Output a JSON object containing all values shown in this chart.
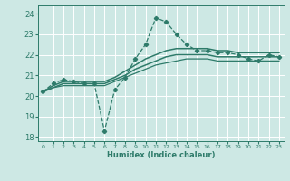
{
  "background_color": "#cde8e4",
  "grid_color": "#ffffff",
  "line_color": "#2e7b6a",
  "xlabel": "Humidex (Indice chaleur)",
  "xlim": [
    -0.5,
    23.5
  ],
  "ylim": [
    17.8,
    24.4
  ],
  "yticks": [
    18,
    19,
    20,
    21,
    22,
    23,
    24
  ],
  "xticks": [
    0,
    1,
    2,
    3,
    4,
    5,
    6,
    7,
    8,
    9,
    10,
    11,
    12,
    13,
    14,
    15,
    16,
    17,
    18,
    19,
    20,
    21,
    22,
    23
  ],
  "lines": [
    {
      "x": [
        0,
        1,
        2,
        3,
        4,
        5,
        6,
        7,
        8,
        9,
        10,
        11,
        12,
        13,
        14,
        15,
        16,
        17,
        18,
        19,
        20,
        21,
        22,
        23
      ],
      "y": [
        20.2,
        20.6,
        20.8,
        20.7,
        20.6,
        20.6,
        18.3,
        20.3,
        20.9,
        21.8,
        22.5,
        23.8,
        23.6,
        23.0,
        22.5,
        22.2,
        22.2,
        22.1,
        22.1,
        22.0,
        21.8,
        21.7,
        22.0,
        21.9
      ],
      "marker": "D",
      "markersize": 2.2,
      "linewidth": 0.9,
      "linestyle": "--"
    },
    {
      "x": [
        0,
        1,
        2,
        3,
        4,
        5,
        6,
        7,
        8,
        9,
        10,
        11,
        12,
        13,
        14,
        15,
        16,
        17,
        18,
        19,
        20,
        21,
        22,
        23
      ],
      "y": [
        20.2,
        20.5,
        20.7,
        20.7,
        20.7,
        20.7,
        20.7,
        20.9,
        21.2,
        21.5,
        21.8,
        22.0,
        22.2,
        22.3,
        22.3,
        22.3,
        22.3,
        22.2,
        22.2,
        22.1,
        22.1,
        22.1,
        22.1,
        22.1
      ],
      "marker": null,
      "markersize": 0,
      "linewidth": 1.1,
      "linestyle": "-"
    },
    {
      "x": [
        0,
        1,
        2,
        3,
        4,
        5,
        6,
        7,
        8,
        9,
        10,
        11,
        12,
        13,
        14,
        15,
        16,
        17,
        18,
        19,
        20,
        21,
        22,
        23
      ],
      "y": [
        20.2,
        20.4,
        20.6,
        20.6,
        20.6,
        20.6,
        20.6,
        20.8,
        21.0,
        21.3,
        21.5,
        21.7,
        21.9,
        22.0,
        22.0,
        22.0,
        22.0,
        21.9,
        21.9,
        21.9,
        21.9,
        21.9,
        21.9,
        21.9
      ],
      "marker": null,
      "markersize": 0,
      "linewidth": 1.1,
      "linestyle": "-"
    },
    {
      "x": [
        0,
        1,
        2,
        3,
        4,
        5,
        6,
        7,
        8,
        9,
        10,
        11,
        12,
        13,
        14,
        15,
        16,
        17,
        18,
        19,
        20,
        21,
        22,
        23
      ],
      "y": [
        20.2,
        20.4,
        20.5,
        20.5,
        20.5,
        20.5,
        20.5,
        20.7,
        20.9,
        21.1,
        21.3,
        21.5,
        21.6,
        21.7,
        21.8,
        21.8,
        21.8,
        21.7,
        21.7,
        21.7,
        21.7,
        21.7,
        21.7,
        21.7
      ],
      "marker": null,
      "markersize": 0,
      "linewidth": 0.9,
      "linestyle": "-"
    }
  ]
}
